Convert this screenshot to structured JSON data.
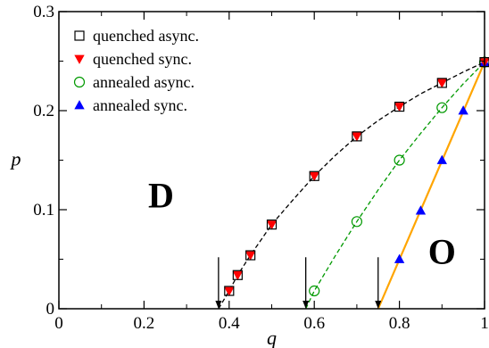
{
  "chart_data": {
    "type": "scatter",
    "xlabel": "q",
    "ylabel": "p",
    "xlim": [
      0,
      1
    ],
    "ylim": [
      0,
      0.3
    ],
    "x_ticks": [
      "0",
      "0.2",
      "0.4",
      "0.6",
      "0.8",
      "1"
    ],
    "y_ticks": [
      "0",
      "0.1",
      "0.2",
      "0.3"
    ],
    "x_tick_values": [
      0,
      0.2,
      0.4,
      0.6,
      0.8,
      1.0
    ],
    "y_tick_values": [
      0,
      0.1,
      0.2,
      0.3
    ],
    "grid": false,
    "legend_position": "top-left",
    "series": [
      {
        "name": "quenched async.",
        "marker": "open-square",
        "color": "#000000",
        "x": [
          0.4,
          0.42,
          0.45,
          0.5,
          0.6,
          0.7,
          0.8,
          0.9,
          1.0
        ],
        "y": [
          0.018,
          0.034,
          0.054,
          0.085,
          0.134,
          0.174,
          0.204,
          0.228,
          0.249
        ]
      },
      {
        "name": "quenched sync.",
        "marker": "filled-down-triangle",
        "color": "#ff0000",
        "x": [
          0.4,
          0.42,
          0.45,
          0.5,
          0.6,
          0.7,
          0.8,
          0.9,
          1.0
        ],
        "y": [
          0.018,
          0.034,
          0.054,
          0.085,
          0.134,
          0.174,
          0.204,
          0.228,
          0.249
        ]
      },
      {
        "name": "annealed async.",
        "marker": "open-circle",
        "color": "#009900",
        "x": [
          0.6,
          0.7,
          0.8,
          0.9,
          1.0
        ],
        "y": [
          0.018,
          0.088,
          0.15,
          0.203,
          0.249
        ]
      },
      {
        "name": "annealed sync.",
        "marker": "filled-up-triangle",
        "color": "#0000ff",
        "x": [
          0.8,
          0.85,
          0.9,
          0.95,
          1.0
        ],
        "y": [
          0.05,
          0.099,
          0.15,
          0.2,
          0.249
        ]
      }
    ],
    "curves": [
      {
        "style": "dashed",
        "color": "#000000",
        "x": [
          0.375,
          0.4,
          0.42,
          0.45,
          0.5,
          0.55,
          0.6,
          0.65,
          0.7,
          0.75,
          0.8,
          0.85,
          0.9,
          0.95,
          1.0
        ],
        "y": [
          0.0,
          0.018,
          0.034,
          0.054,
          0.085,
          0.11,
          0.134,
          0.155,
          0.174,
          0.19,
          0.204,
          0.217,
          0.228,
          0.239,
          0.249
        ]
      },
      {
        "style": "dashed",
        "color": "#009900",
        "x": [
          0.58,
          0.6,
          0.65,
          0.7,
          0.75,
          0.8,
          0.85,
          0.9,
          0.95,
          1.0
        ],
        "y": [
          0.0,
          0.018,
          0.054,
          0.088,
          0.12,
          0.15,
          0.177,
          0.203,
          0.227,
          0.249
        ]
      },
      {
        "style": "solid",
        "color": "#ffa500",
        "x": [
          0.75,
          1.0
        ],
        "y": [
          0.0,
          0.249
        ]
      }
    ],
    "arrows": [
      {
        "x": 0.375,
        "y_from": 0.052,
        "y_to": 0.0
      },
      {
        "x": 0.58,
        "y_from": 0.052,
        "y_to": 0.0
      },
      {
        "x": 0.75,
        "y_from": 0.052,
        "y_to": 0.0
      }
    ],
    "region_labels": [
      {
        "text": "D",
        "x": 0.57,
        "y": 0.115
      },
      {
        "text": "O",
        "x": 0.9,
        "y": 0.058
      }
    ]
  }
}
